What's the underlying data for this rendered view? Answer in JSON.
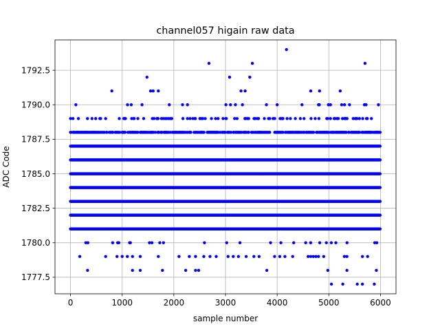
{
  "chart_data": {
    "type": "scatter",
    "title": "channel057 higain raw data",
    "xlabel": "sample number",
    "ylabel": "ADC Code",
    "xlim": [
      -300,
      6300
    ],
    "ylim": [
      1776.3,
      1794.7
    ],
    "xticks": [
      0,
      1000,
      2000,
      3000,
      4000,
      5000,
      6000
    ],
    "yticks": [
      1777.5,
      1780.0,
      1782.5,
      1785.0,
      1787.5,
      1790.0,
      1792.5
    ],
    "xtick_labels": [
      "0",
      "1000",
      "2000",
      "3000",
      "4000",
      "5000",
      "6000"
    ],
    "ytick_labels": [
      "1777.5",
      "1780.0",
      "1782.5",
      "1785.0",
      "1787.5",
      "1790.0",
      "1792.5"
    ],
    "grid": true,
    "marker_color": "#0000ff",
    "n_samples": 6000,
    "dense_levels": [
      1781,
      1782,
      1783,
      1784,
      1785,
      1786,
      1787
    ],
    "sparse_levels": [
      {
        "y": 1788,
        "density": 0.45
      },
      {
        "y": 1789,
        "density": 0.13
      },
      {
        "y": 1790,
        "density": 0.035
      },
      {
        "y": 1780,
        "density": 0.035
      }
    ],
    "outliers": [
      {
        "x": 800,
        "y": 1791
      },
      {
        "x": 1480,
        "y": 1792
      },
      {
        "x": 1550,
        "y": 1791
      },
      {
        "x": 1600,
        "y": 1791
      },
      {
        "x": 1700,
        "y": 1791
      },
      {
        "x": 2680,
        "y": 1793
      },
      {
        "x": 3080,
        "y": 1792
      },
      {
        "x": 3300,
        "y": 1791
      },
      {
        "x": 3380,
        "y": 1791
      },
      {
        "x": 3470,
        "y": 1792
      },
      {
        "x": 3520,
        "y": 1793
      },
      {
        "x": 4180,
        "y": 1794
      },
      {
        "x": 4650,
        "y": 1791
      },
      {
        "x": 4820,
        "y": 1791
      },
      {
        "x": 5220,
        "y": 1791
      },
      {
        "x": 5700,
        "y": 1793
      },
      {
        "x": 180,
        "y": 1779
      },
      {
        "x": 680,
        "y": 1779
      },
      {
        "x": 900,
        "y": 1779
      },
      {
        "x": 1000,
        "y": 1779
      },
      {
        "x": 1100,
        "y": 1779
      },
      {
        "x": 1200,
        "y": 1779
      },
      {
        "x": 1350,
        "y": 1779
      },
      {
        "x": 1700,
        "y": 1779
      },
      {
        "x": 2100,
        "y": 1779
      },
      {
        "x": 2300,
        "y": 1779
      },
      {
        "x": 2420,
        "y": 1779
      },
      {
        "x": 2580,
        "y": 1779
      },
      {
        "x": 2700,
        "y": 1779
      },
      {
        "x": 2820,
        "y": 1779
      },
      {
        "x": 3050,
        "y": 1779
      },
      {
        "x": 3150,
        "y": 1779
      },
      {
        "x": 3250,
        "y": 1779
      },
      {
        "x": 3400,
        "y": 1779
      },
      {
        "x": 3550,
        "y": 1779
      },
      {
        "x": 3650,
        "y": 1779
      },
      {
        "x": 3950,
        "y": 1779
      },
      {
        "x": 4050,
        "y": 1779
      },
      {
        "x": 4150,
        "y": 1779
      },
      {
        "x": 4300,
        "y": 1779
      },
      {
        "x": 4600,
        "y": 1779
      },
      {
        "x": 4650,
        "y": 1779
      },
      {
        "x": 4700,
        "y": 1779
      },
      {
        "x": 4750,
        "y": 1779
      },
      {
        "x": 4800,
        "y": 1779
      },
      {
        "x": 4900,
        "y": 1779
      },
      {
        "x": 5300,
        "y": 1779
      },
      {
        "x": 5350,
        "y": 1779
      },
      {
        "x": 5650,
        "y": 1779
      },
      {
        "x": 5750,
        "y": 1779
      },
      {
        "x": 330,
        "y": 1778
      },
      {
        "x": 1200,
        "y": 1778
      },
      {
        "x": 1350,
        "y": 1778
      },
      {
        "x": 1780,
        "y": 1778
      },
      {
        "x": 2230,
        "y": 1778
      },
      {
        "x": 2420,
        "y": 1778
      },
      {
        "x": 2480,
        "y": 1778
      },
      {
        "x": 3800,
        "y": 1778
      },
      {
        "x": 4980,
        "y": 1778
      },
      {
        "x": 5350,
        "y": 1778
      },
      {
        "x": 5920,
        "y": 1778
      },
      {
        "x": 5050,
        "y": 1777
      },
      {
        "x": 5270,
        "y": 1777
      },
      {
        "x": 5550,
        "y": 1777
      },
      {
        "x": 5650,
        "y": 1777
      },
      {
        "x": 5880,
        "y": 1777
      }
    ]
  }
}
